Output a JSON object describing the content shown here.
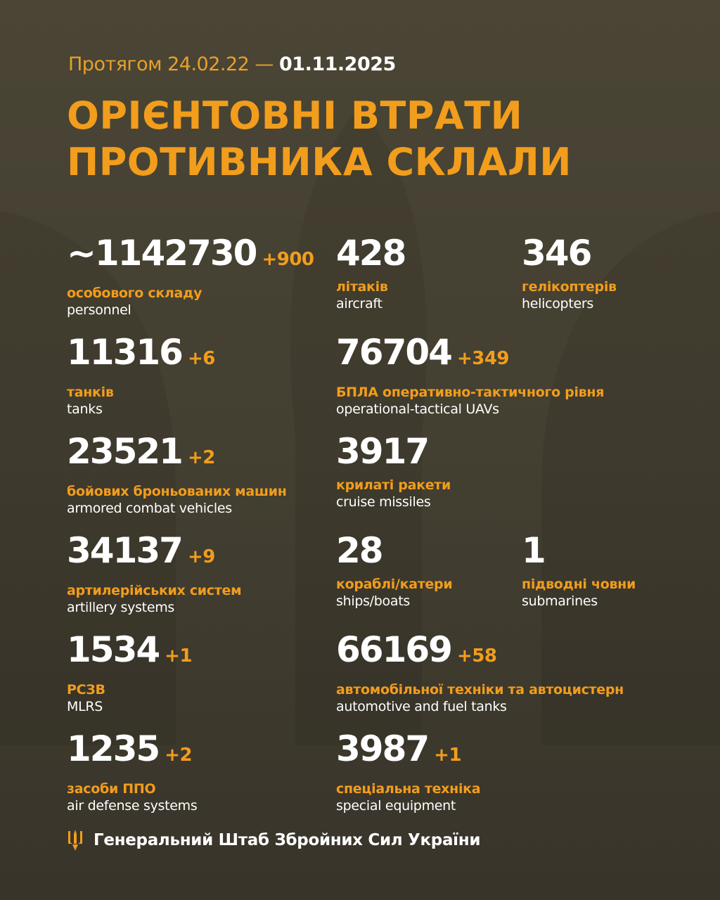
{
  "colors": {
    "accent": "#f29d1c",
    "background": "#4a4535",
    "text": "#ffffff"
  },
  "header": {
    "period_prefix": "Протягом 24.02.22 —",
    "period_date": "01.11.2025",
    "title_line1": "ОРІЄНТОВНІ ВТРАТИ",
    "title_line2": "ПРОТИВНИКА СКЛАЛИ"
  },
  "stats": [
    {
      "value": "~1142730",
      "delta": "+900",
      "ua": "особового складу",
      "en": "personnel"
    },
    {
      "value": "428",
      "delta": "",
      "ua": "літаків",
      "en": "aircraft"
    },
    {
      "value": "346",
      "delta": "",
      "ua": "гелікоптерів",
      "en": "helicopters"
    },
    {
      "value": "11316",
      "delta": "+6",
      "ua": "танків",
      "en": "tanks"
    },
    {
      "value": "76704",
      "delta": "+349",
      "ua": "БПЛА оперативно-тактичного рівня",
      "en": "operational-tactical UAVs"
    },
    {
      "value": "23521",
      "delta": "+2",
      "ua": "бойових броньованих машин",
      "en": "armored combat vehicles"
    },
    {
      "value": "3917",
      "delta": "",
      "ua": "крилаті ракети",
      "en": "cruise missiles"
    },
    {
      "value": "34137",
      "delta": "+9",
      "ua": "артилерійських систем",
      "en": "artillery systems"
    },
    {
      "value": "28",
      "delta": "",
      "ua": "кораблі/катери",
      "en": "ships/boats"
    },
    {
      "value": "1",
      "delta": "",
      "ua": "підводні човни",
      "en": "submarines"
    },
    {
      "value": "1534",
      "delta": "+1",
      "ua": "РСЗВ",
      "en": "MLRS"
    },
    {
      "value": "66169",
      "delta": "+58",
      "ua": "автомобільної техніки та автоцистерн",
      "en": "automotive and fuel tanks"
    },
    {
      "value": "1235",
      "delta": "+2",
      "ua": "засоби ППО",
      "en": "air defense systems"
    },
    {
      "value": "3987",
      "delta": "+1",
      "ua": "спеціальна техніка",
      "en": "special equipment"
    }
  ],
  "footer": {
    "icon": "trident-icon",
    "text": "Генеральний Штаб Збройних Сил України"
  }
}
